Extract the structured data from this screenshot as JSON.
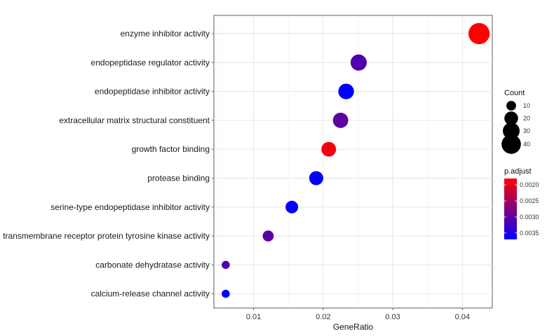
{
  "chart_data": {
    "type": "scatter",
    "title": "",
    "xlabel": "GeneRatio",
    "ylabel": "",
    "xlim": [
      0.0043,
      0.0443
    ],
    "x_ticks": [
      0.01,
      0.02,
      0.03,
      0.04
    ],
    "x_tick_labels": [
      "0.01",
      "0.02",
      "0.03",
      "0.04"
    ],
    "grid": true,
    "legend_placement": "right",
    "categories": [
      "enzyme inhibitor activity",
      "endopeptidase regulator activity",
      "endopeptidase inhibitor activity",
      "extracellular matrix structural constituent",
      "growth factor binding",
      "protease binding",
      "serine-type endopeptidase inhibitor activity",
      "transmembrane receptor protein tyrosine kinase activity",
      "carbonate dehydratase activity",
      "calcium-release channel activity"
    ],
    "points": [
      {
        "category": "enzyme inhibitor activity",
        "gene_ratio": 0.0424,
        "count": 48,
        "p_adjust": 0.0018
      },
      {
        "category": "endopeptidase regulator activity",
        "gene_ratio": 0.0251,
        "count": 28,
        "p_adjust": 0.0031
      },
      {
        "category": "endopeptidase inhibitor activity",
        "gene_ratio": 0.0233,
        "count": 26,
        "p_adjust": 0.0037
      },
      {
        "category": "extracellular matrix structural constituent",
        "gene_ratio": 0.0225,
        "count": 25,
        "p_adjust": 0.003
      },
      {
        "category": "growth factor binding",
        "gene_ratio": 0.0208,
        "count": 23,
        "p_adjust": 0.0019
      },
      {
        "category": "protease binding",
        "gene_ratio": 0.019,
        "count": 21,
        "p_adjust": 0.0037
      },
      {
        "category": "serine-type endopeptidase inhibitor activity",
        "gene_ratio": 0.0155,
        "count": 17,
        "p_adjust": 0.0037
      },
      {
        "category": "transmembrane receptor protein tyrosine kinase activity",
        "gene_ratio": 0.0121,
        "count": 13,
        "p_adjust": 0.003
      },
      {
        "category": "carbonate dehydratase activity",
        "gene_ratio": 0.006,
        "count": 7,
        "p_adjust": 0.0031
      },
      {
        "category": "calcium-release channel activity",
        "gene_ratio": 0.006,
        "count": 7,
        "p_adjust": 0.0037
      }
    ],
    "legend_count": {
      "title": "Count",
      "values": [
        10,
        20,
        30,
        40
      ],
      "labels": [
        "10",
        "20",
        "30",
        "40"
      ]
    },
    "legend_padjust": {
      "title": "p.adjust",
      "min": 0.0018,
      "max": 0.0037,
      "ticks": [
        0.002,
        0.0025,
        0.003,
        0.0035
      ],
      "labels": [
        "0.0020",
        "0.0025",
        "0.0030",
        "0.0035"
      ],
      "color_low": "#ff0000",
      "color_high": "#0000ff"
    }
  }
}
